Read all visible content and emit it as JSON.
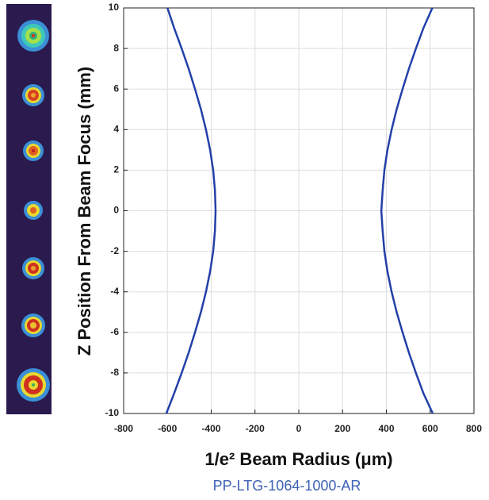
{
  "chart_data": {
    "type": "line",
    "xlabel": "1/e² Beam Radius (μm)",
    "ylabel": "Z Position From Beam Focus (mm)",
    "caption": "PP-LTG-1064-1000-AR",
    "y": [
      -10,
      -9,
      -8,
      -7,
      -6,
      -5,
      -4,
      -3,
      -2,
      -1,
      0,
      1,
      2,
      3,
      4,
      5,
      6,
      7,
      8,
      9,
      10
    ],
    "series": [
      {
        "color": "#2340a8",
        "values": [
          -605,
          -569,
          -535,
          -503,
          -474,
          -447,
          -424,
          -405,
          -391,
          -383,
          -380,
          -383,
          -391,
          -405,
          -424,
          -447,
          -474,
          -503,
          -535,
          -569,
          -600
        ]
      },
      {
        "color": "#2340a8",
        "values": [
          612,
          569,
          535,
          503,
          474,
          447,
          424,
          405,
          391,
          383,
          377,
          383,
          391,
          405,
          424,
          447,
          474,
          503,
          535,
          569,
          610
        ]
      }
    ],
    "xlim": [
      -800,
      800
    ],
    "xticks": [
      -800,
      -600,
      -400,
      -200,
      0,
      200,
      400,
      600,
      800
    ],
    "ylim": [
      -10,
      10
    ],
    "yticks": [
      -10,
      -8,
      -6,
      -4,
      -2,
      0,
      2,
      4,
      6,
      8,
      10
    ],
    "grid": true
  }
}
